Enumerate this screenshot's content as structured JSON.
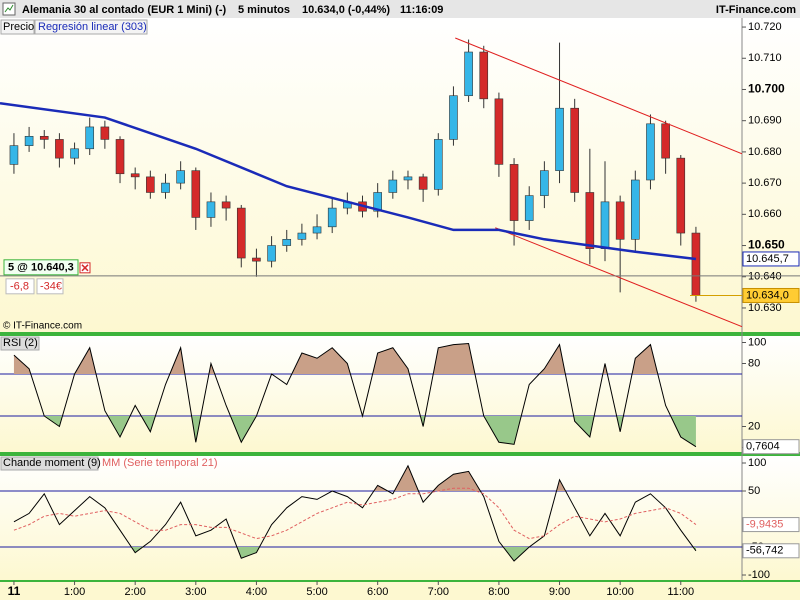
{
  "header": {
    "title": "Alemania 30 al contado (EUR 1 Mini) (-)",
    "period": "5 minutos",
    "quote": "10.634,0 (-0,44%)",
    "time": "11:16:09",
    "site": "IT-Finance.com"
  },
  "chart_data": [
    {
      "type": "candlestick",
      "name": "Precio",
      "watermark": "© IT-Finance.com",
      "up_color": "#35b6e8",
      "down_color": "#d42a2a",
      "x": [
        0,
        0.25,
        0.5,
        0.75,
        1,
        1.25,
        1.5,
        1.75,
        2,
        2.25,
        2.5,
        2.75,
        3,
        3.25,
        3.5,
        3.75,
        4,
        4.25,
        4.5,
        4.75,
        5,
        5.25,
        5.5,
        5.75,
        6,
        6.25,
        6.5,
        6.75,
        7,
        7.25,
        7.5,
        7.75,
        8,
        8.25,
        8.5,
        8.75,
        9,
        9.25,
        9.5,
        9.75,
        10,
        10.25,
        10.5,
        10.75,
        11,
        11.25
      ],
      "open": [
        10676,
        10682,
        10685,
        10684,
        10678,
        10681,
        10688,
        10684,
        10673,
        10672,
        10667,
        10670,
        10674,
        10659,
        10664,
        10662,
        10646,
        10645,
        10650,
        10652,
        10654,
        10656,
        10662,
        10664,
        10661,
        10667,
        10671,
        10672,
        10668,
        10684,
        10698,
        10712,
        10697,
        10676,
        10658,
        10666,
        10674,
        10694,
        10667,
        10649,
        10664,
        10652,
        10671,
        10689,
        10678,
        10654
      ],
      "high": [
        10686,
        10688,
        10687,
        10686,
        10683,
        10691,
        10690,
        10685,
        10675,
        10674,
        10673,
        10677,
        10675,
        10667,
        10666,
        10663,
        10649,
        10653,
        10655,
        10657,
        10660,
        10665,
        10667,
        10666,
        10670,
        10674,
        10674,
        10673,
        10686,
        10701,
        10716,
        10714,
        10699,
        10678,
        10669,
        10677,
        10715,
        10697,
        10681,
        10677,
        10666,
        10674,
        10692,
        10690,
        10679,
        10656
      ],
      "low": [
        10673,
        10680,
        10681,
        10675,
        10676,
        10679,
        10681,
        10670,
        10668,
        10665,
        10665,
        10668,
        10655,
        10656,
        10658,
        10643,
        10640,
        10643,
        10648,
        10650,
        10652,
        10654,
        10660,
        10659,
        10659,
        10665,
        10668,
        10664,
        10666,
        10682,
        10696,
        10694,
        10672,
        10650,
        10655,
        10662,
        10670,
        10664,
        10644,
        10645,
        10635,
        10648,
        10668,
        10673,
        10650,
        10632
      ],
      "close": [
        10682,
        10685,
        10684,
        10678,
        10681,
        10688,
        10684,
        10673,
        10672,
        10667,
        10670,
        10674,
        10659,
        10664,
        10662,
        10646,
        10645,
        10650,
        10652,
        10654,
        10656,
        10662,
        10664,
        10661,
        10667,
        10671,
        10672,
        10668,
        10684,
        10698,
        10712,
        10697,
        10676,
        10658,
        10666,
        10674,
        10694,
        10667,
        10649,
        10664,
        10652,
        10671,
        10689,
        10678,
        10654,
        10634
      ],
      "overlays": [
        {
          "name": "Regresión linear (303)",
          "color": "#1a2bb8",
          "x": [
            -0.23,
            1.5,
            3,
            4.5,
            5.5,
            6.5,
            7.25,
            8,
            8.75,
            9.5,
            10.25,
            11.25
          ],
          "values": [
            10695.6,
            10691,
            10681,
            10669,
            10664,
            10659,
            10655,
            10655,
            10652,
            10650,
            10648,
            10645.7
          ],
          "last_label": "10.645,7"
        }
      ],
      "channel": [
        {
          "color": "#e02020",
          "x": [
            7.28,
            12.01
          ],
          "values": [
            10716.5,
            10679.4
          ]
        },
        {
          "color": "#e02020",
          "x": [
            7.94,
            12.01
          ],
          "values": [
            10655.7,
            10624.0
          ]
        }
      ],
      "position": {
        "text": "5 @ 10.640,3",
        "level": 10640.3,
        "points": "-6,8",
        "money": "-34€"
      },
      "last_price": {
        "value": 10634.0,
        "label": "10.634,0"
      },
      "xlim": [
        -0.23,
        12.01
      ],
      "ylim": [
        10622.3,
        10722.9
      ],
      "yticks": [
        {
          "value": 10720,
          "label": "10.720"
        },
        {
          "value": 10710,
          "label": "10.710"
        },
        {
          "value": 10700,
          "label": "10.700",
          "bold": true
        },
        {
          "value": 10690,
          "label": "10.690"
        },
        {
          "value": 10680,
          "label": "10.680"
        },
        {
          "value": 10670,
          "label": "10.670"
        },
        {
          "value": 10660,
          "label": "10.660"
        },
        {
          "value": 10650,
          "label": "10.650",
          "bold": true
        },
        {
          "value": 10640,
          "label": "10.640"
        },
        {
          "value": 10630,
          "label": "10.630"
        }
      ]
    },
    {
      "type": "line",
      "series": [
        {
          "name": "RSI (2)",
          "color": "#000000",
          "last_label": "0,7604",
          "x": [
            0,
            0.25,
            0.5,
            0.75,
            1,
            1.25,
            1.5,
            1.75,
            2,
            2.25,
            2.5,
            2.75,
            3,
            3.25,
            3.5,
            3.75,
            4,
            4.25,
            4.5,
            4.75,
            5,
            5.25,
            5.5,
            5.75,
            6,
            6.25,
            6.5,
            6.75,
            7,
            7.25,
            7.5,
            7.75,
            8,
            8.25,
            8.5,
            8.75,
            9,
            9.25,
            9.5,
            9.75,
            10,
            10.25,
            10.5,
            10.75,
            11,
            11.25
          ],
          "values": [
            88,
            75,
            30,
            20,
            70,
            95,
            35,
            10,
            40,
            15,
            60,
            95,
            5,
            80,
            40,
            5,
            30,
            70,
            60,
            90,
            85,
            95,
            80,
            30,
            90,
            95,
            75,
            20,
            95,
            98,
            99,
            30,
            5,
            3,
            60,
            75,
            98,
            25,
            10,
            80,
            15,
            85,
            98,
            40,
            10,
            0.7604
          ]
        }
      ],
      "levels": [
        70,
        30
      ],
      "level_color": "#1c1ca0",
      "fill_above_color": "#c9a088",
      "fill_below_color": "#98c88a",
      "xlim": [
        -0.23,
        12.01
      ],
      "ylim": [
        -4.3,
        106.2
      ],
      "yticks": [
        100,
        80,
        20,
        0
      ]
    },
    {
      "type": "line",
      "series": [
        {
          "name": "Chande moment (9)",
          "color": "#000000",
          "last_label": "-56,742",
          "x": [
            0,
            0.25,
            0.5,
            0.75,
            1,
            1.25,
            1.5,
            1.75,
            2,
            2.25,
            2.5,
            2.75,
            3,
            3.25,
            3.5,
            3.75,
            4,
            4.25,
            4.5,
            4.75,
            5,
            5.25,
            5.5,
            5.75,
            6,
            6.25,
            6.5,
            6.75,
            7,
            7.25,
            7.5,
            7.75,
            8,
            8.25,
            8.5,
            8.75,
            9,
            9.25,
            9.5,
            9.75,
            10,
            10.25,
            10.5,
            10.75,
            11,
            11.25
          ],
          "values": [
            -5,
            10,
            45,
            -10,
            15,
            40,
            20,
            -20,
            -60,
            -40,
            -10,
            30,
            -30,
            -20,
            0,
            -70,
            -60,
            -10,
            20,
            40,
            35,
            50,
            40,
            20,
            60,
            45,
            95,
            30,
            60,
            80,
            85,
            40,
            -40,
            -75,
            -50,
            -30,
            70,
            20,
            -30,
            10,
            -30,
            30,
            45,
            20,
            -20,
            -56.742
          ]
        },
        {
          "name": "MM (Serie temporal 21)",
          "color": "#e06060",
          "dashed": true,
          "last_label": "-9,9435",
          "x": [
            0,
            0.25,
            0.5,
            0.75,
            1,
            1.25,
            1.5,
            1.75,
            2,
            2.25,
            2.5,
            2.75,
            3,
            3.25,
            3.5,
            3.75,
            4,
            4.25,
            4.5,
            4.75,
            5,
            5.25,
            5.5,
            5.75,
            6,
            6.25,
            6.5,
            6.75,
            7,
            7.25,
            7.5,
            7.75,
            8,
            8.25,
            8.5,
            8.75,
            9,
            9.25,
            9.5,
            9.75,
            10,
            10.25,
            10.5,
            10.75,
            11,
            11.25
          ],
          "values": [
            -20,
            -10,
            5,
            10,
            5,
            10,
            15,
            10,
            -5,
            -20,
            -20,
            -10,
            -10,
            -15,
            -15,
            -25,
            -35,
            -30,
            -20,
            -5,
            10,
            20,
            30,
            25,
            30,
            35,
            45,
            45,
            50,
            55,
            55,
            45,
            20,
            -20,
            -35,
            -30,
            -10,
            5,
            0,
            -5,
            0,
            10,
            15,
            20,
            10,
            -9.9435
          ]
        }
      ],
      "levels": [
        50,
        -50
      ],
      "level_color": "#1c1ca0",
      "fill_above_color": "#c9a088",
      "fill_below_color": "#98c88a",
      "xlim": [
        -0.23,
        12.01
      ],
      "ylim": [
        -108.9,
        112.5
      ],
      "yticks": [
        100,
        50,
        -50,
        -100
      ],
      "xticks": [
        {
          "value": 0,
          "label": "11",
          "bold": true
        },
        {
          "value": 1,
          "label": "1:00"
        },
        {
          "value": 2,
          "label": "2:00"
        },
        {
          "value": 3,
          "label": "3:00"
        },
        {
          "value": 4,
          "label": "4:00"
        },
        {
          "value": 5,
          "label": "5:00"
        },
        {
          "value": 6,
          "label": "6:00"
        },
        {
          "value": 7,
          "label": "7:00"
        },
        {
          "value": 8,
          "label": "8:00"
        },
        {
          "value": 9,
          "label": "9:00"
        },
        {
          "value": 10,
          "label": "10:00"
        },
        {
          "value": 11,
          "label": "11:00"
        }
      ]
    }
  ]
}
